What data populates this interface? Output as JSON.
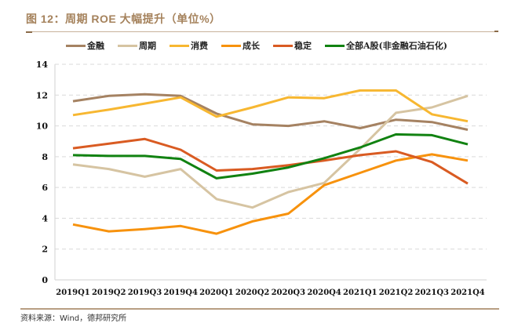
{
  "figure": {
    "title": "图 12：周期 ROE 大幅提升（单位%）",
    "source": "资料来源：Wind，德邦研究所"
  },
  "chart_data": {
    "type": "line",
    "title": "图 12：周期 ROE 大幅提升（单位%）",
    "xlabel": "",
    "ylabel": "",
    "ylim": [
      0,
      14
    ],
    "yticks": [
      0,
      2,
      4,
      6,
      8,
      10,
      12,
      14
    ],
    "grid": true,
    "legend_position": "top",
    "categories": [
      "2019Q1",
      "2019Q2",
      "2019Q3",
      "2019Q4",
      "2020Q1",
      "2020Q2",
      "2020Q3",
      "2020Q4",
      "2021Q1",
      "2021Q2",
      "2021Q3",
      "2021Q4"
    ],
    "series": [
      {
        "name": "金融",
        "color": "#a58262",
        "values": [
          11.6,
          11.95,
          12.05,
          11.95,
          10.8,
          10.1,
          10.0,
          10.3,
          9.85,
          10.4,
          10.25,
          9.75
        ]
      },
      {
        "name": "周期",
        "color": "#d6c4a2",
        "values": [
          7.5,
          7.2,
          6.7,
          7.2,
          5.25,
          4.7,
          5.7,
          6.3,
          8.5,
          10.85,
          11.2,
          11.95
        ]
      },
      {
        "name": "消费",
        "color": "#f7b731",
        "values": [
          10.7,
          11.05,
          11.45,
          11.85,
          10.6,
          11.2,
          11.85,
          11.8,
          12.3,
          12.3,
          10.75,
          10.3
        ]
      },
      {
        "name": "成长",
        "color": "#f7920d",
        "values": [
          3.6,
          3.15,
          3.3,
          3.5,
          3.0,
          3.8,
          4.3,
          6.15,
          6.95,
          7.75,
          8.15,
          7.75
        ]
      },
      {
        "name": "稳定",
        "color": "#d95b22",
        "values": [
          8.55,
          8.85,
          9.15,
          8.45,
          7.1,
          7.2,
          7.45,
          7.75,
          8.1,
          8.35,
          7.65,
          6.25
        ]
      },
      {
        "name": "全部A股(非金融石油石化)",
        "color": "#118211",
        "values": [
          8.1,
          8.05,
          8.05,
          7.85,
          6.6,
          6.9,
          7.3,
          7.9,
          8.6,
          9.45,
          9.4,
          8.8
        ]
      }
    ]
  }
}
